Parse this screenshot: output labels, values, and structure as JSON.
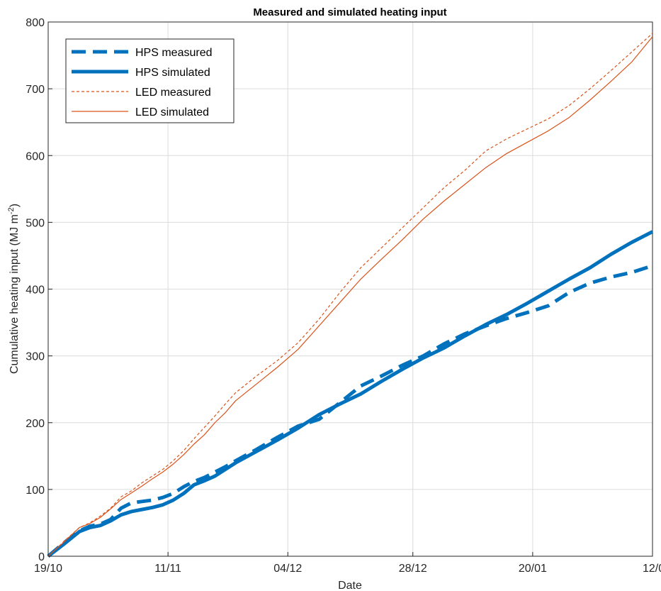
{
  "chart_data": {
    "type": "line",
    "title": "Measured and simulated heating input",
    "xlabel": "Date",
    "ylabel_main": "Cumulative heating input (MJ m",
    "ylabel_sup": "-2",
    "ylabel_close": ")",
    "x_ticks": [
      "19/10",
      "11/11",
      "04/12",
      "28/12",
      "20/01",
      "12/0"
    ],
    "x_tick_days": [
      0,
      23,
      46,
      70,
      93,
      116
    ],
    "xlim_days": [
      0,
      116
    ],
    "y_ticks": [
      "0",
      "100",
      "200",
      "300",
      "400",
      "500",
      "600",
      "700",
      "800"
    ],
    "ylim": [
      0,
      800
    ],
    "grid": true,
    "legend_position": "top-left",
    "series": [
      {
        "name": "HPS measured",
        "color": "#0072bd",
        "style": "dashed-thick",
        "x": [
          0,
          3,
          6,
          8,
          10,
          12,
          14,
          16,
          18,
          20,
          22,
          24,
          26,
          28,
          30,
          32,
          34,
          36,
          40,
          44,
          48,
          52,
          56,
          60,
          64,
          68,
          72,
          76,
          80,
          84,
          88,
          92,
          96,
          100,
          104,
          108,
          112,
          116
        ],
        "y": [
          0,
          20,
          38,
          45,
          48,
          55,
          72,
          80,
          82,
          84,
          88,
          94,
          104,
          112,
          118,
          126,
          134,
          143,
          160,
          178,
          195,
          205,
          230,
          255,
          270,
          286,
          300,
          318,
          333,
          345,
          356,
          365,
          375,
          395,
          409,
          418,
          425,
          435
        ]
      },
      {
        "name": "HPS simulated",
        "color": "#0072bd",
        "style": "solid-thick",
        "x": [
          0,
          3,
          6,
          8,
          10,
          12,
          14,
          16,
          18,
          20,
          22,
          24,
          26,
          28,
          30,
          32,
          34,
          36,
          40,
          44,
          48,
          52,
          56,
          60,
          64,
          68,
          72,
          76,
          80,
          84,
          88,
          92,
          96,
          100,
          104,
          108,
          112,
          116
        ],
        "y": [
          0,
          18,
          37,
          43,
          46,
          53,
          62,
          67,
          70,
          73,
          77,
          84,
          94,
          107,
          113,
          120,
          130,
          140,
          157,
          174,
          192,
          212,
          228,
          243,
          262,
          280,
          297,
          312,
          330,
          347,
          362,
          379,
          397,
          415,
          432,
          452,
          470,
          486
        ]
      },
      {
        "name": "LED measured",
        "color": "#d95319",
        "style": "dashed-thin",
        "x": [
          0,
          3,
          6,
          8,
          10,
          12,
          14,
          16,
          18,
          20,
          22,
          24,
          26,
          28,
          30,
          32,
          34,
          36,
          40,
          44,
          48,
          52,
          56,
          60,
          64,
          68,
          72,
          76,
          80,
          84,
          88,
          92,
          96,
          100,
          104,
          108,
          112,
          116
        ],
        "y": [
          0,
          22,
          43,
          50,
          60,
          72,
          89,
          98,
          110,
          120,
          130,
          143,
          158,
          176,
          193,
          210,
          228,
          245,
          270,
          293,
          320,
          355,
          395,
          432,
          462,
          492,
          522,
          552,
          578,
          607,
          625,
          640,
          655,
          675,
          700,
          727,
          755,
          783
        ]
      },
      {
        "name": "LED simulated",
        "color": "#d95319",
        "style": "solid-thin",
        "x": [
          0,
          3,
          6,
          8,
          10,
          12,
          14,
          16,
          18,
          20,
          22,
          24,
          26,
          28,
          30,
          32,
          34,
          36,
          40,
          44,
          48,
          52,
          56,
          60,
          64,
          68,
          72,
          76,
          80,
          84,
          88,
          92,
          96,
          100,
          104,
          108,
          112,
          116
        ],
        "y": [
          0,
          21,
          43,
          49,
          58,
          71,
          85,
          95,
          105,
          116,
          126,
          138,
          152,
          168,
          182,
          200,
          215,
          233,
          258,
          283,
          310,
          345,
          380,
          415,
          445,
          474,
          505,
          532,
          557,
          582,
          603,
          620,
          637,
          657,
          683,
          711,
          740,
          778
        ]
      }
    ]
  }
}
